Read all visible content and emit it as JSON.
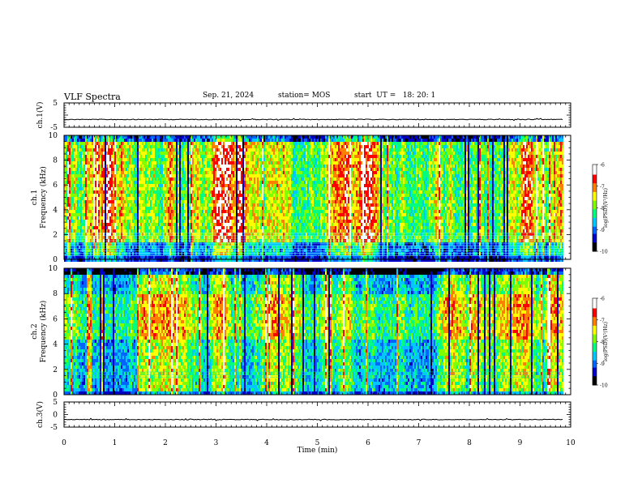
{
  "header": {
    "title": "VLF Spectra",
    "date": "Sep. 21, 2024",
    "station": "station= MOS",
    "start": "start  UT =   18: 20: 1"
  },
  "chart_data": [
    {
      "type": "line",
      "panel": "ch1-voltage",
      "ylabel": "ch.1(V)",
      "ylim": [
        -5,
        5
      ],
      "yticks": [
        "5",
        "-5"
      ],
      "xlim": [
        0,
        10
      ],
      "baseline_value": -1.8,
      "trace_end": 9.85
    },
    {
      "type": "heatmap",
      "panel": "ch1-spectrogram",
      "ylabel": "ch.1\nFrequency  (kHz)",
      "ylim": [
        0,
        10
      ],
      "yticks": [
        "0",
        "2",
        "4",
        "6",
        "8",
        "10"
      ],
      "xlim": [
        0,
        10
      ],
      "data_end": 9.85,
      "colorbar": {
        "label": "log(PSD)(V²/Hz)",
        "range": [
          -10,
          -6
        ],
        "ticks": [
          "-6",
          "-7",
          "-8",
          "-9",
          "-10"
        ]
      },
      "intensity": "high",
      "noise_band_khz": [
        0.3,
        2.2
      ]
    },
    {
      "type": "heatmap",
      "panel": "ch2-spectrogram",
      "ylabel": "ch.2\nFrequency  (kHz)",
      "ylim": [
        0,
        10
      ],
      "yticks": [
        "0",
        "2",
        "4",
        "6",
        "8",
        "10"
      ],
      "xlim": [
        0,
        10
      ],
      "data_end": 9.85,
      "colorbar": {
        "label": "log(PSD)(V²/Hz)",
        "range": [
          -10,
          -6
        ],
        "ticks": [
          "-6",
          "-7",
          "-8",
          "-9",
          "-10"
        ]
      },
      "intensity": "medium",
      "noise_band_khz": [
        1.4,
        1.8
      ]
    },
    {
      "type": "line",
      "panel": "ch3-voltage",
      "ylabel": "ch.3(V)",
      "ylim": [
        -5,
        5
      ],
      "yticks": [
        "5",
        "0",
        "-5"
      ],
      "xlim": [
        0,
        10
      ],
      "xticks": [
        "0",
        "1",
        "2",
        "3",
        "4",
        "5",
        "6",
        "7",
        "8",
        "9",
        "10"
      ],
      "xlabel": "Time  (min)",
      "baseline_value": -2,
      "trace_end": 9.85
    }
  ],
  "colors": {
    "scale": [
      "#000000",
      "#0000c8",
      "#0064ff",
      "#00c8ff",
      "#00ff80",
      "#80ff00",
      "#ffff00",
      "#ff8000",
      "#ff0000",
      "#ffffff"
    ]
  }
}
